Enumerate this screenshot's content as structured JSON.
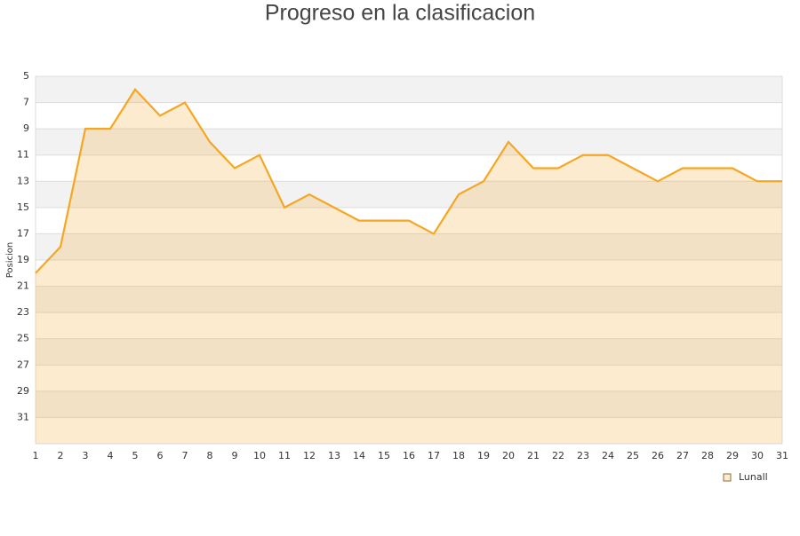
{
  "chart_data": {
    "type": "line",
    "title": "Progreso en la clasificacion",
    "y_label": "Posicion",
    "x": [
      1,
      2,
      3,
      4,
      5,
      6,
      7,
      8,
      9,
      10,
      11,
      12,
      13,
      14,
      15,
      16,
      17,
      18,
      19,
      20,
      21,
      22,
      23,
      24,
      25,
      26,
      27,
      28,
      29,
      30,
      31
    ],
    "series": [
      {
        "name": "Lunall",
        "color": "#f5a623",
        "values": [
          20,
          18,
          9,
          9,
          6,
          8,
          7,
          10,
          12,
          11,
          15,
          14,
          15,
          16,
          16,
          16,
          17,
          14,
          13,
          10,
          12,
          12,
          11,
          11,
          12,
          13,
          12,
          12,
          12,
          13,
          13
        ]
      }
    ],
    "xlim": [
      1,
      31
    ],
    "xticks": [
      1,
      2,
      3,
      4,
      5,
      6,
      7,
      8,
      9,
      10,
      11,
      12,
      13,
      14,
      15,
      16,
      17,
      18,
      19,
      20,
      21,
      22,
      23,
      24,
      25,
      26,
      27,
      28,
      29,
      30,
      31
    ],
    "ylim": [
      5,
      33
    ],
    "yticks": [
      5,
      7,
      9,
      11,
      13,
      15,
      17,
      19,
      21,
      23,
      25,
      27,
      29,
      31
    ],
    "y_inverted": true,
    "area_fill": true,
    "grid": true,
    "legend": "bottom-right"
  }
}
